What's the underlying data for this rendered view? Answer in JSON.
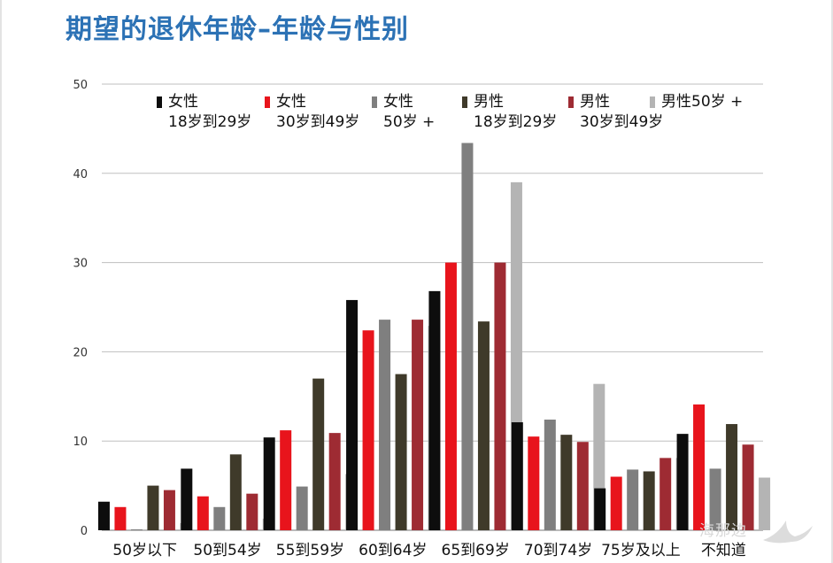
{
  "title": "期望的退休年龄–年龄与性别",
  "watermark": "海那边",
  "chart_data": {
    "type": "bar",
    "title": "期望的退休年龄–年龄与性别",
    "xlabel": "",
    "ylabel": "",
    "ylim": [
      0,
      50
    ],
    "yticks": [
      "0",
      "10",
      "20",
      "30",
      "40",
      "50"
    ],
    "grid": true,
    "legend_position": "top",
    "categories": [
      "50岁以下",
      "50到54岁",
      "55到59岁",
      "60到64岁",
      "65到69岁",
      "70到74岁",
      "75岁及以上",
      "不知道"
    ],
    "series": [
      {
        "name": "女性\n18岁到29岁",
        "color": "#0d0d0d",
        "values": [
          3.2,
          6.9,
          10.4,
          25.8,
          26.8,
          12.1,
          4.7,
          10.8
        ]
      },
      {
        "name": "女性\n30岁到49岁",
        "color": "#e8141c",
        "values": [
          2.6,
          3.8,
          11.2,
          22.4,
          30.0,
          10.5,
          6.0,
          14.1
        ]
      },
      {
        "name": "女性\n50岁 +",
        "color": "#7f7f7f",
        "values": [
          0.1,
          2.6,
          4.9,
          23.6,
          43.4,
          12.4,
          6.8,
          6.9
        ]
      },
      {
        "name": "男性\n18岁到29岁",
        "color": "#3f3a2a",
        "values": [
          5.0,
          8.5,
          17.0,
          17.5,
          23.4,
          10.7,
          6.6,
          11.9
        ]
      },
      {
        "name": "男性\n30岁到49岁",
        "color": "#9e2b33",
        "values": [
          4.5,
          4.1,
          10.9,
          23.6,
          30.0,
          9.9,
          8.1,
          9.6
        ]
      },
      {
        "name": "男性50岁 +",
        "color": "#b4b4b4",
        "values": [
          0.8,
          1.3,
          6.3,
          22.9,
          39.0,
          16.4,
          8.1,
          5.9
        ]
      }
    ]
  }
}
